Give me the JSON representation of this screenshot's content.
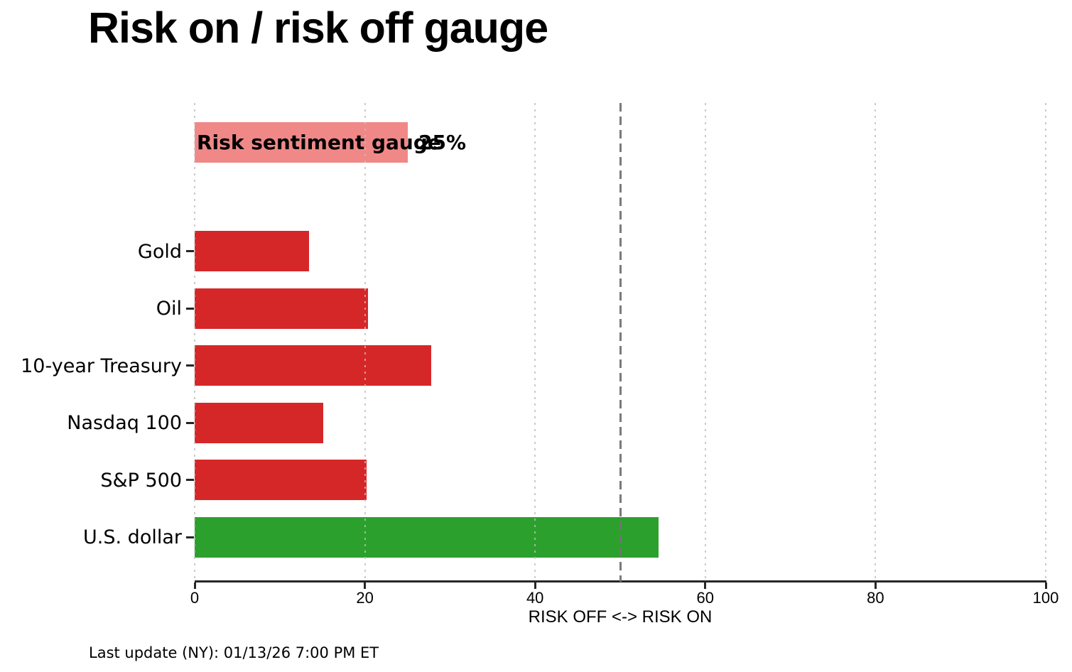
{
  "title": "Risk on / risk off gauge",
  "footer": {
    "text": "Last update (NY): 01/13/26 7:00 PM ET"
  },
  "chart_data": {
    "type": "bar",
    "orientation": "horizontal",
    "title": "Risk on / risk off gauge",
    "xlabel": "RISK OFF <-> RISK ON",
    "xlim": [
      0,
      100
    ],
    "x_ticks": [
      0,
      20,
      40,
      60,
      80,
      100
    ],
    "grid": "vertical dotted gridlines at each x tick, drawn over bars",
    "legend": "none",
    "reference_line": {
      "x": 50,
      "style": "dashed",
      "color": "#737373"
    },
    "gauge": {
      "label": "Risk sentiment gauge",
      "value": 25,
      "value_label": "25%",
      "color": "#f08888"
    },
    "categories": [
      "Gold",
      "Oil",
      "10-year Treasury",
      "Nasdaq 100",
      "S&P 500",
      "U.S. dollar"
    ],
    "values": [
      13.4,
      20.4,
      27.8,
      15.1,
      20.2,
      54.5
    ],
    "colors": [
      "#d62728",
      "#d62728",
      "#d62728",
      "#d62728",
      "#d62728",
      "#2ca02c"
    ],
    "color_meaning": {
      "risk_off_red": "#d62728",
      "risk_on_green": "#2ca02c"
    }
  }
}
